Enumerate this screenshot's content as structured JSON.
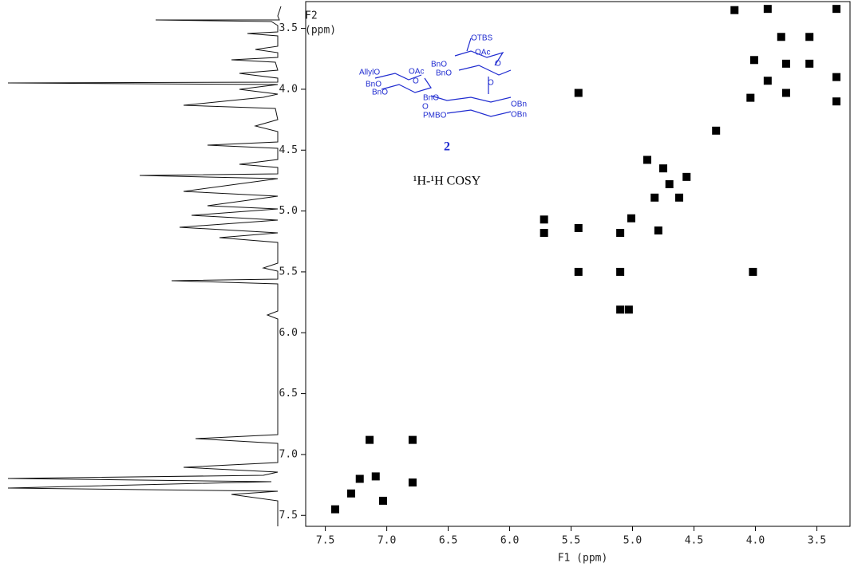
{
  "chart_data": {
    "type": "scatter",
    "xlabel": "F1 (ppm)",
    "ylabel": [
      "F2",
      "(ppm)"
    ],
    "compound_number": "2",
    "experiment": "¹H-¹H COSY",
    "structure_labels": [
      "OTBS",
      "OAc",
      "BnO",
      "BnO",
      "O",
      "AllylO",
      "OAc",
      "BnO",
      "BnO",
      "O",
      "O",
      "BnO",
      "OBn",
      "PMBO",
      "OBn",
      "O"
    ],
    "color": "#000000",
    "xlim": [
      7.66,
      3.23
    ],
    "ylim": [
      7.59,
      3.28
    ],
    "xticks": [
      {
        "value": 7.5,
        "label": "7.5"
      },
      {
        "value": 7,
        "label": "7.0"
      },
      6.5,
      {
        "value": 6,
        "label": "6.0"
      },
      5.5,
      {
        "value": 5,
        "label": "5.0"
      },
      4.5,
      {
        "value": 4,
        "label": "4.0"
      },
      3.5
    ],
    "yticks": [
      3.5,
      {
        "value": 4,
        "label": "4.0"
      },
      4.5,
      {
        "value": 5,
        "label": "5.0"
      },
      5.5,
      {
        "value": 6,
        "label": "6.0"
      },
      6.5,
      {
        "value": 7,
        "label": "7.0"
      },
      7.5
    ],
    "x": [
      7.14,
      6.79,
      6.79,
      7.29,
      7.42,
      7.09,
      7.03,
      7.22,
      5.72,
      5.72,
      5.44,
      5.44,
      5.44,
      5.1,
      5.1,
      5.03,
      5.1,
      5.01,
      4.79,
      4.32,
      4.88,
      4.75,
      4.56,
      4.82,
      4.62,
      4.7,
      4.17,
      3.9,
      3.79,
      3.56,
      3.75,
      4.01,
      4.04,
      3.9,
      3.75,
      3.34,
      3.34,
      3.34,
      3.56,
      4.02
    ],
    "values": [
      6.88,
      6.88,
      7.23,
      7.32,
      7.45,
      7.18,
      7.38,
      7.2,
      5.07,
      5.18,
      5.14,
      4.03,
      5.5,
      5.5,
      5.81,
      5.81,
      5.18,
      5.06,
      5.16,
      4.34,
      4.58,
      4.65,
      4.72,
      4.89,
      4.89,
      4.78,
      3.35,
      3.34,
      3.57,
      3.57,
      3.79,
      3.76,
      4.07,
      3.93,
      4.03,
      3.9,
      4.1,
      3.34,
      3.79,
      5.5
    ]
  }
}
